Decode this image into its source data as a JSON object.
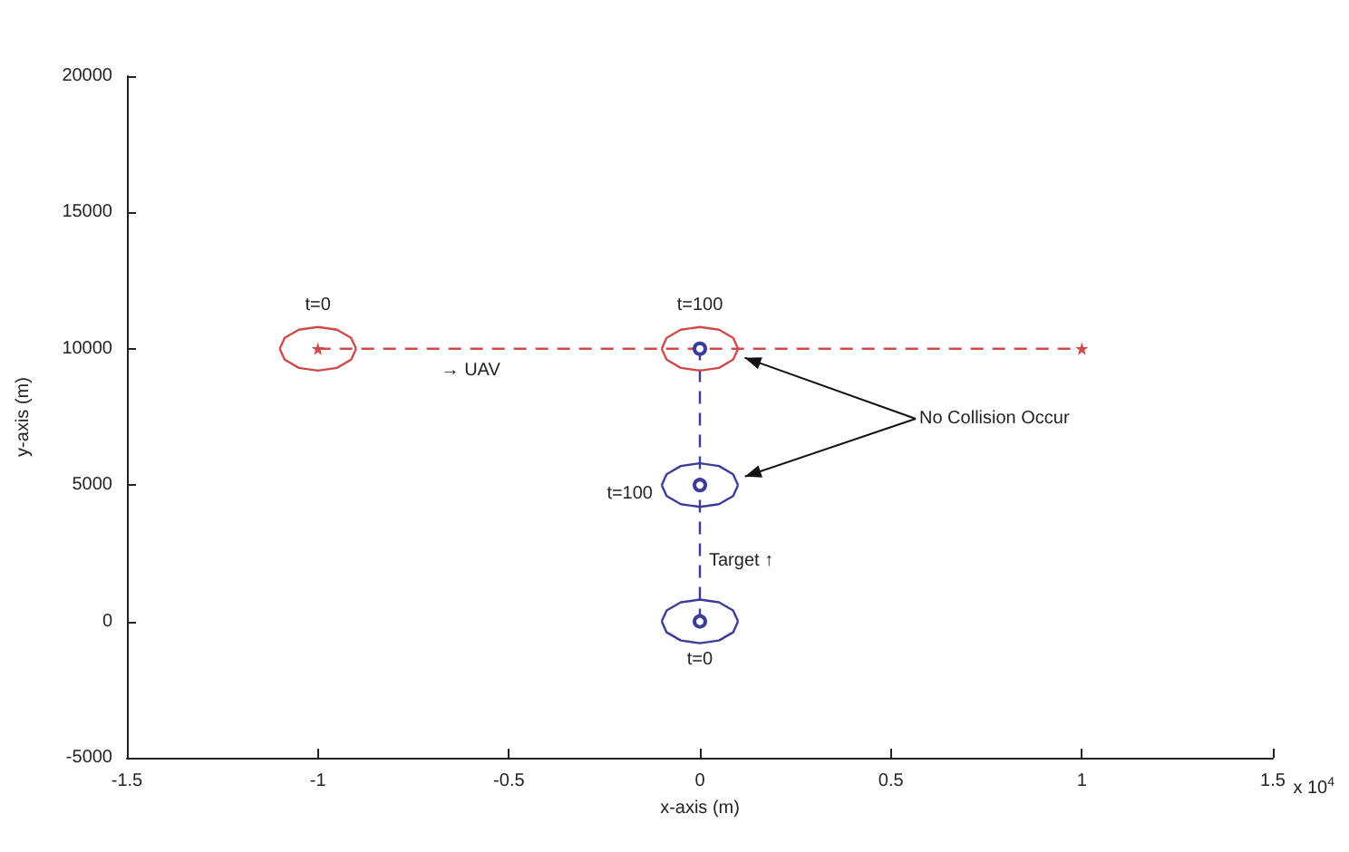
{
  "chart_data": {
    "type": "line",
    "xlabel": "x-axis (m)",
    "ylabel": "y-axis (m)",
    "xlim": [
      -1.5,
      1.5
    ],
    "xticks": [
      -1.5,
      -1,
      -0.5,
      0,
      0.5,
      1,
      1.5
    ],
    "ylim": [
      -5000,
      20000
    ],
    "yticks": [
      -5000,
      0,
      5000,
      10000,
      15000,
      20000
    ],
    "grid": false,
    "series": [
      {
        "color": "#d04a4a",
        "x": [
          -1,
          0,
          1
        ],
        "values": [
          10000,
          10000,
          10000
        ],
        "line_style": "dashed",
        "marker": "star"
      },
      {
        "color": "#3c3c9c",
        "x": [
          0,
          0,
          0
        ],
        "values": [
          0,
          5000,
          10000
        ],
        "line_style": "dashed",
        "marker": "circle"
      },
      {
        "color": "#d04a4a",
        "x": [
          -1.1,
          -1.087,
          -1.05,
          -1,
          -0.95,
          -0.913,
          -0.9
        ],
        "values": [
          10000,
          10400,
          10700,
          10800,
          10700,
          10400,
          10000
        ],
        "line_style": "solid",
        "marker": "none"
      },
      {
        "color": "#d04a4a",
        "x": [
          -1.1,
          -1.087,
          -1.05,
          -1,
          -0.95,
          -0.913,
          -0.9
        ],
        "values": [
          10000,
          9600,
          9300,
          9200,
          9300,
          9600,
          10000
        ],
        "line_style": "solid",
        "marker": "none"
      },
      {
        "color": "#d04a4a",
        "x": [
          -0.1,
          -0.087,
          -0.05,
          0,
          0.05,
          0.087,
          0.1
        ],
        "values": [
          10000,
          10400,
          10700,
          10800,
          10700,
          10400,
          10000
        ],
        "line_style": "solid",
        "marker": "none"
      },
      {
        "color": "#d04a4a",
        "x": [
          -0.1,
          -0.087,
          -0.05,
          0,
          0.05,
          0.087,
          0.1
        ],
        "values": [
          10000,
          9600,
          9300,
          9200,
          9300,
          9600,
          10000
        ],
        "line_style": "solid",
        "marker": "none"
      },
      {
        "color": "#3c3c9c",
        "x": [
          -0.1,
          -0.087,
          -0.05,
          0,
          0.05,
          0.087,
          0.1
        ],
        "values": [
          5000,
          5400,
          5700,
          5800,
          5700,
          5400,
          5000
        ],
        "line_style": "solid",
        "marker": "none"
      },
      {
        "color": "#3c3c9c",
        "x": [
          -0.1,
          -0.087,
          -0.05,
          0,
          0.05,
          0.087,
          0.1
        ],
        "values": [
          5000,
          4600,
          4300,
          4200,
          4300,
          4600,
          5000
        ],
        "line_style": "solid",
        "marker": "none"
      },
      {
        "color": "#3c3c9c",
        "x": [
          -0.1,
          -0.087,
          -0.05,
          0,
          0.05,
          0.087,
          0.1
        ],
        "values": [
          0,
          400,
          700,
          800,
          700,
          400,
          0
        ],
        "line_style": "solid",
        "marker": "none"
      },
      {
        "color": "#3c3c9c",
        "x": [
          -0.1,
          -0.087,
          -0.05,
          0,
          0.05,
          0.087,
          0.1
        ],
        "values": [
          0,
          -400,
          -700,
          -800,
          -700,
          -400,
          0
        ],
        "line_style": "solid",
        "marker": "none"
      }
    ],
    "annotations": [
      {
        "text": "t=0",
        "x": -1,
        "y": 10000
      },
      {
        "text": "t=100",
        "x": 0,
        "y": 10000
      },
      {
        "text": "→ UAV",
        "x": -0.6,
        "y": 10000
      },
      {
        "text": "t=100",
        "x": 0,
        "y": 5000
      },
      {
        "text": "Target ↑",
        "x": 0,
        "y": 2200
      },
      {
        "text": "t=0",
        "x": 0,
        "y": 0
      },
      "x 10$^{4}$",
      "No Collision Occur"
    ]
  }
}
